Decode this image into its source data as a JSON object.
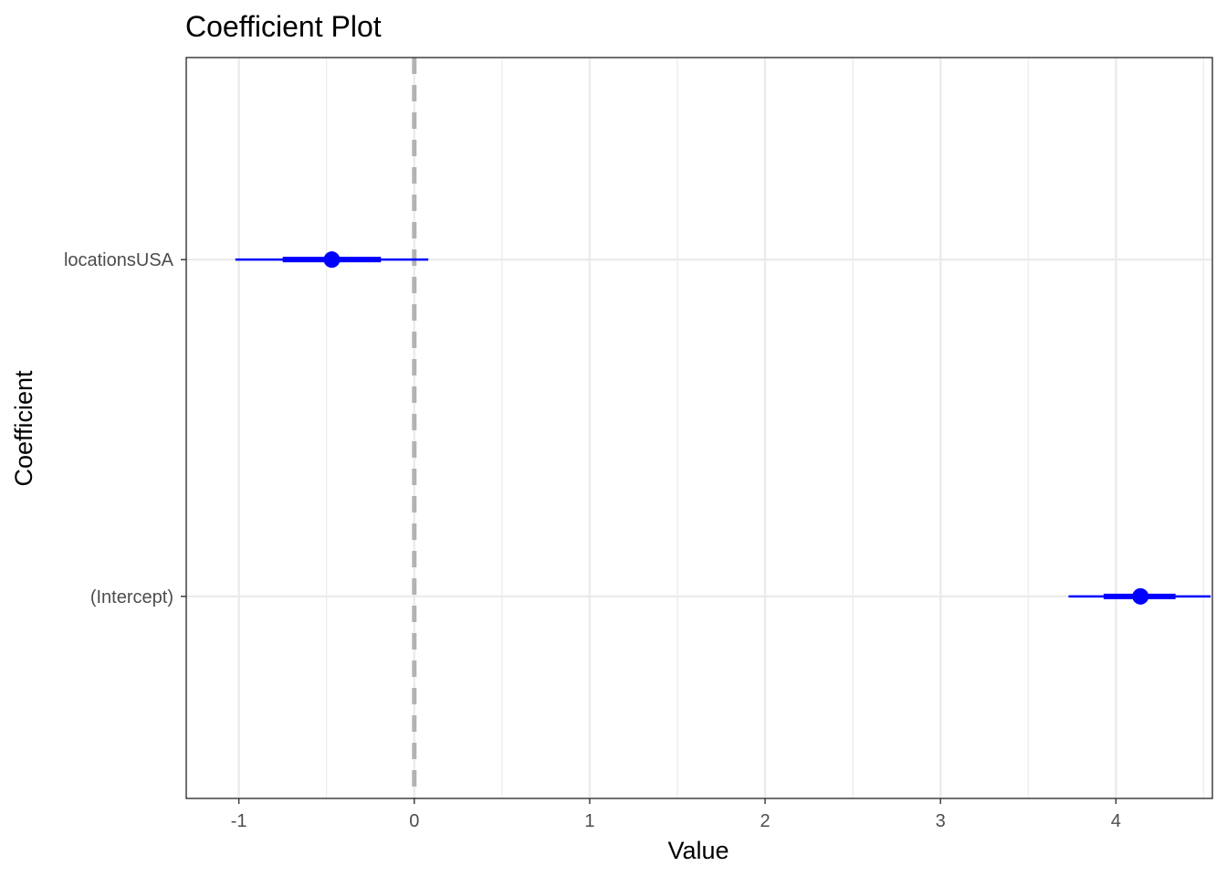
{
  "chart_data": {
    "type": "scatter",
    "title": "Coefficient Plot",
    "xlabel": "Value",
    "ylabel": "Coefficient",
    "xlim": [
      -1.3,
      4.55
    ],
    "x_ticks": [
      -1,
      0,
      1,
      2,
      3,
      4
    ],
    "x_tick_labels": [
      "-1",
      "0",
      "1",
      "2",
      "3",
      "4"
    ],
    "x_minor_ticks": [
      -0.5,
      0.5,
      1.5,
      2.5,
      3.5,
      4.5
    ],
    "reference_line": {
      "x": 0,
      "style": "dashed",
      "color": "#b3b3b3"
    },
    "grid": true,
    "point_color": "#0000ff",
    "categories": [
      "locationsUSA",
      "(Intercept)"
    ],
    "coefficients": [
      {
        "name": "locationsUSA",
        "value": -0.47,
        "inner_low": -0.75,
        "inner_high": -0.19,
        "outer_low": -1.02,
        "outer_high": 0.08
      },
      {
        "name": "(Intercept)",
        "value": 4.14,
        "inner_low": 3.93,
        "inner_high": 4.34,
        "outer_low": 3.73,
        "outer_high": 4.54
      }
    ]
  }
}
